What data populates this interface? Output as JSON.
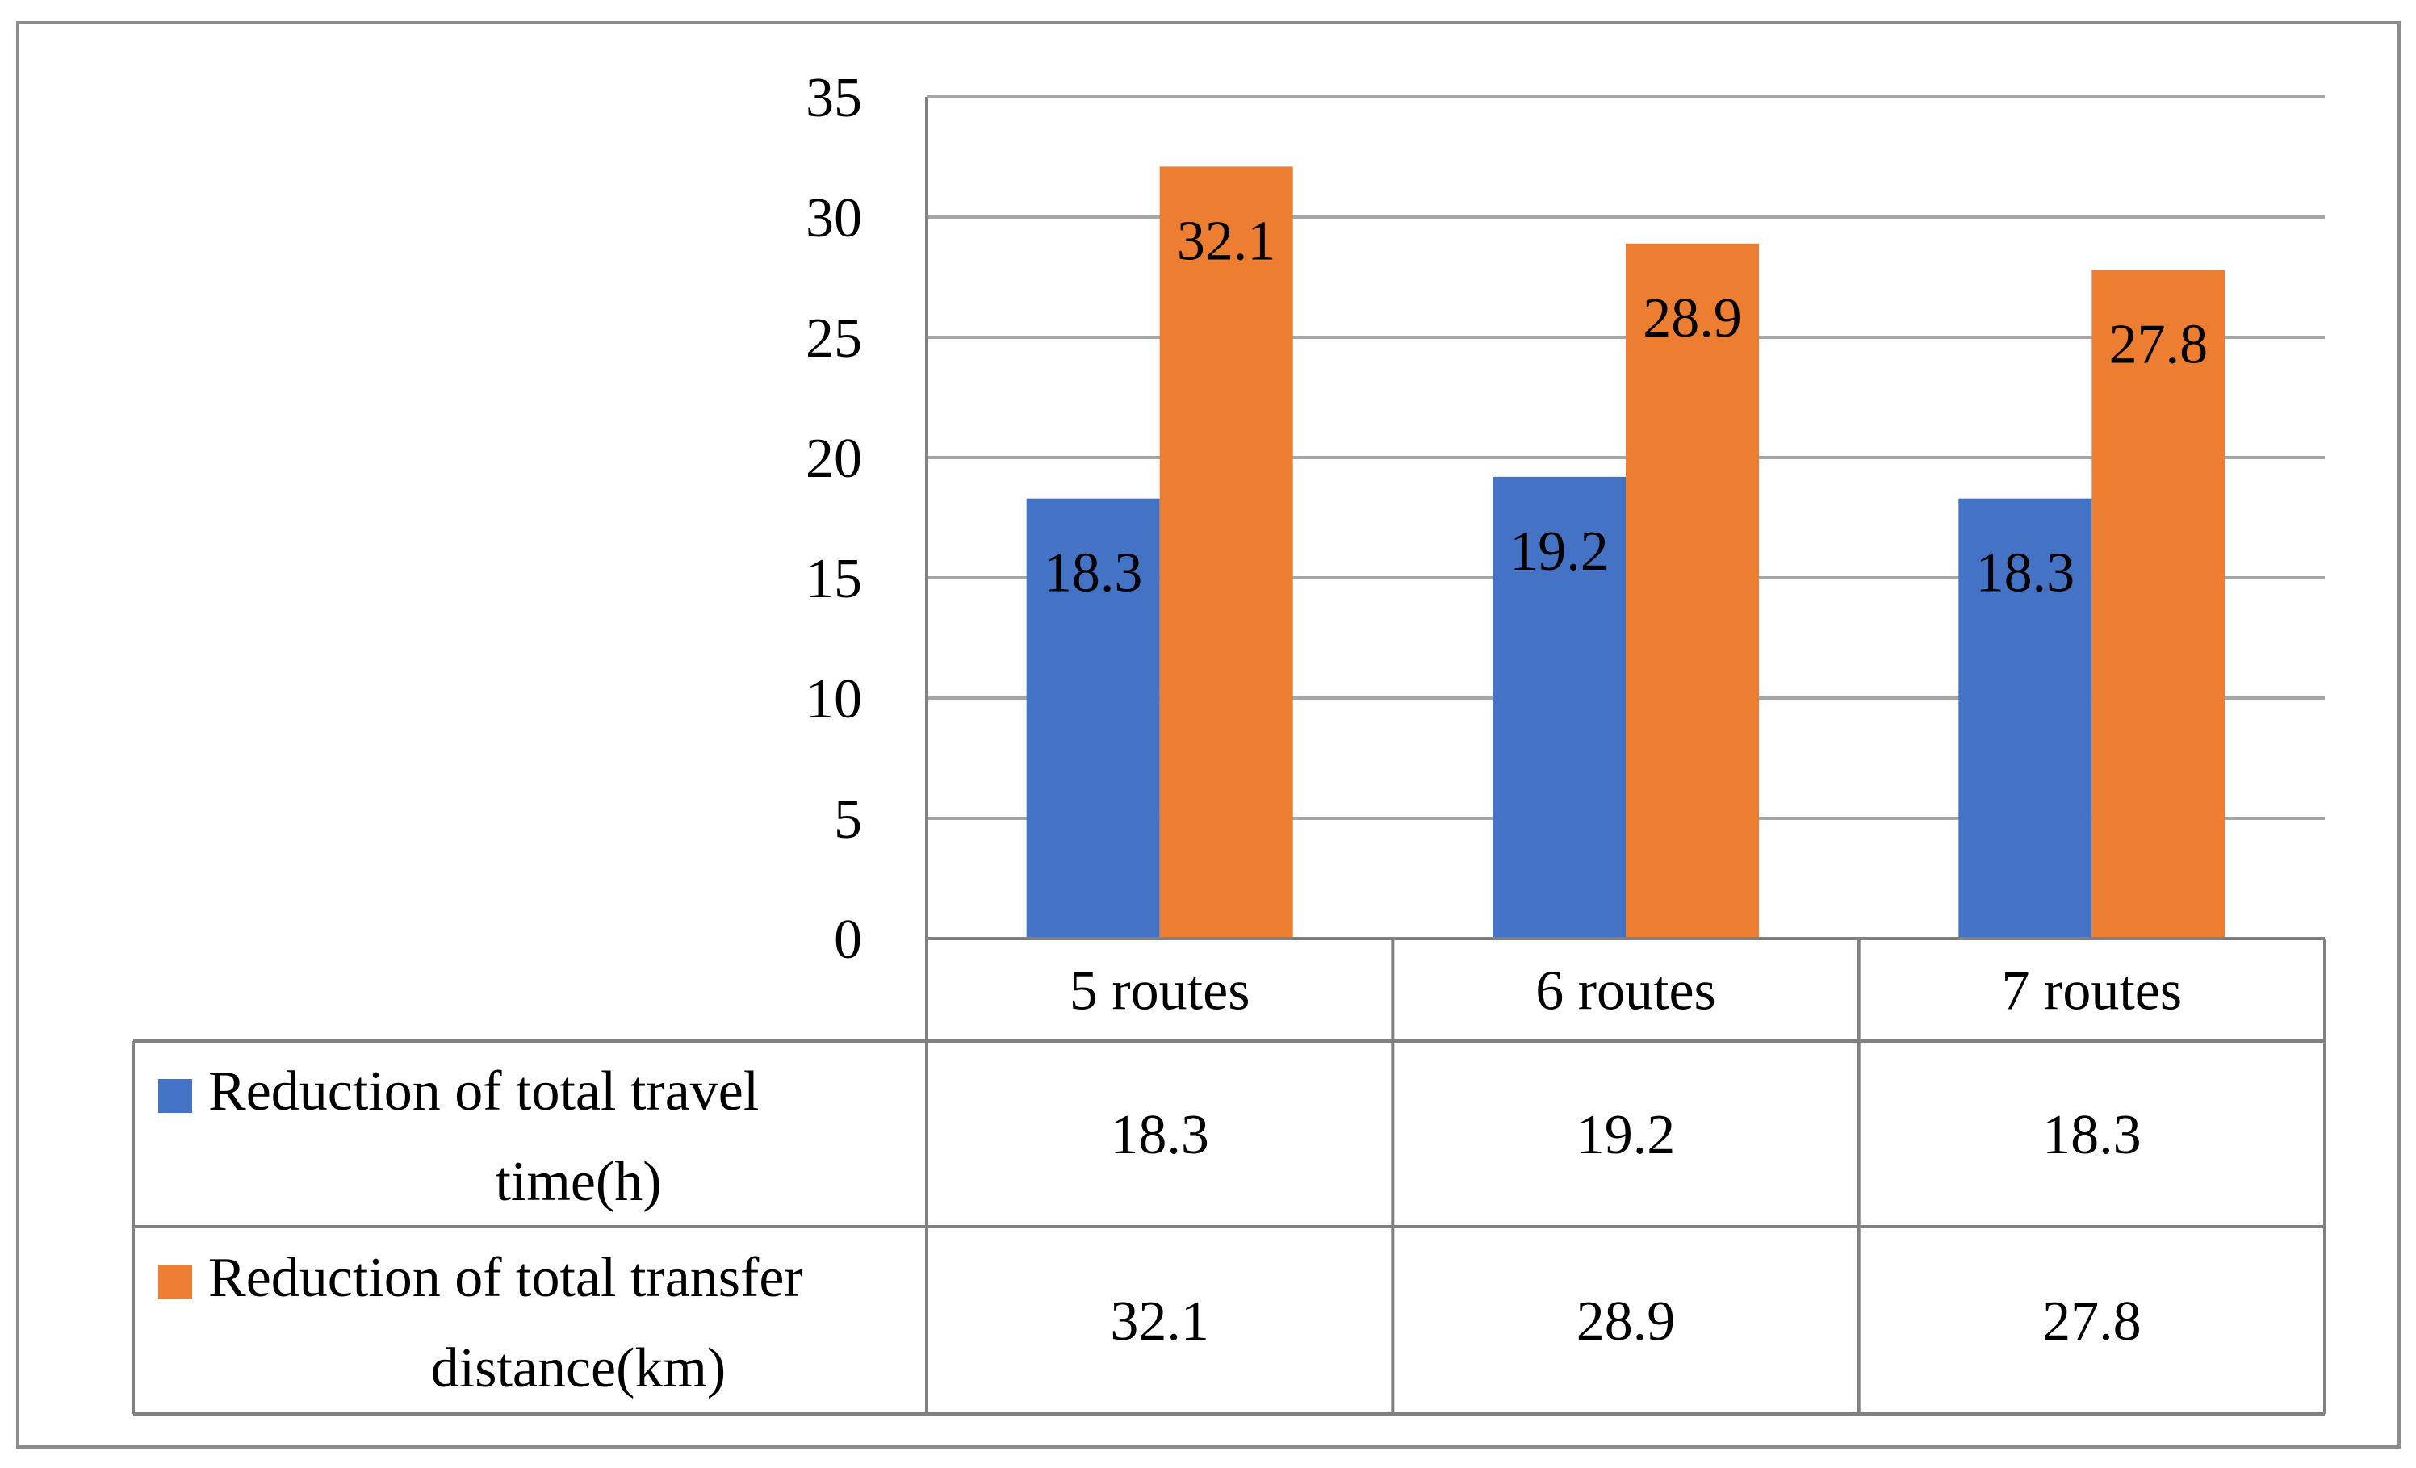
{
  "chart_data": {
    "type": "bar",
    "categories": [
      "5 routes",
      "6 routes",
      "7 routes"
    ],
    "series": [
      {
        "name": "Reduction of total travel time(h)",
        "legend_lines": [
          "Reduction of total travel",
          "time(h)"
        ],
        "color": "#4472C4",
        "values": [
          18.3,
          19.2,
          18.3
        ],
        "labels": [
          "18.3",
          "19.2",
          "18.3"
        ]
      },
      {
        "name": "Reduction of total transfer distance(km)",
        "legend_lines": [
          "Reduction of total transfer",
          "distance(km)"
        ],
        "color": "#ED7D31",
        "values": [
          32.1,
          28.9,
          27.8
        ],
        "labels": [
          "32.1",
          "28.9",
          "27.8"
        ]
      }
    ],
    "y_ticks": [
      "0",
      "5",
      "10",
      "15",
      "20",
      "25",
      "30",
      "35"
    ],
    "ylim": [
      0,
      35
    ],
    "grid": true,
    "legend": "data table below chart",
    "gridline_color": "#A6A6A6",
    "border_color": "#808080"
  }
}
